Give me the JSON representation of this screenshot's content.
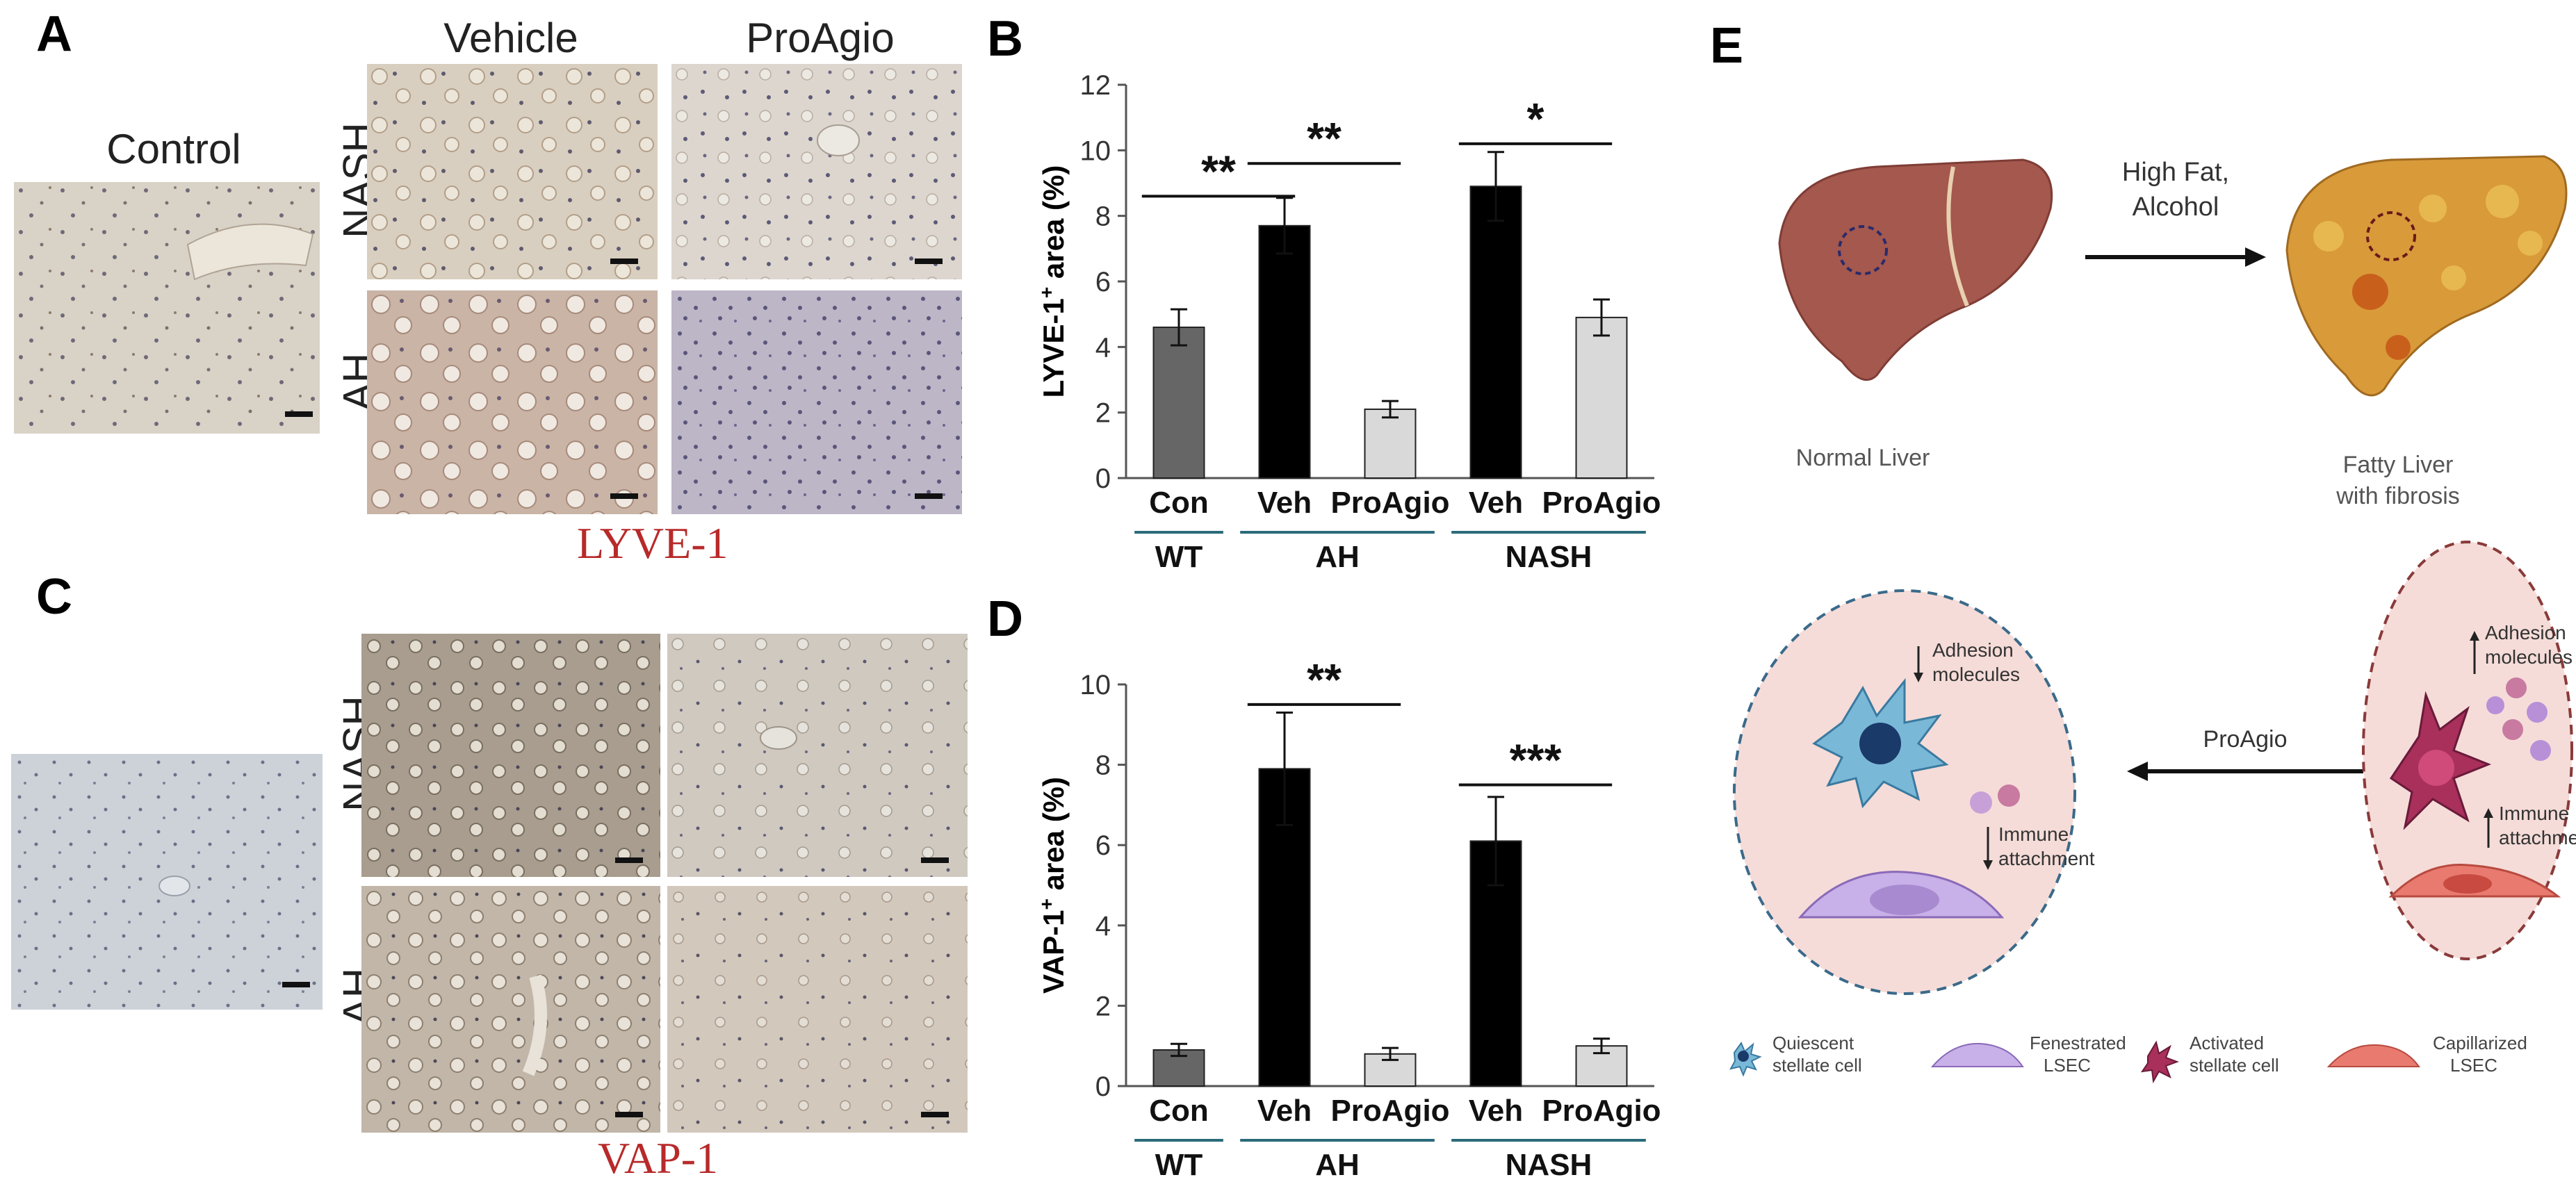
{
  "panels": {
    "A": {
      "letter": "A",
      "control_title": "Control",
      "col_vehicle": "Vehicle",
      "col_proagio": "ProAgio",
      "row_nash": "NASH",
      "row_ah": "AH",
      "stain": "LYVE-1"
    },
    "C": {
      "letter": "C",
      "row_nash": "NASH",
      "row_ah": "AH",
      "stain": "VAP-1"
    },
    "E": {
      "letter": "E",
      "arrow1_label_line1": "High Fat,",
      "arrow1_label_line2": "Alcohol",
      "normal_liver": "Normal Liver",
      "fatty_liver_line1": "Fatty Liver",
      "fatty_liver_line2": "with fibrosis",
      "proagio_arrow": "ProAgio",
      "left_adhesion_line1": "Adhesion",
      "left_adhesion_line2": "molecules",
      "left_immune_line1": "Immune",
      "left_immune_line2": "attachment",
      "right_adhesion_line1": "Adhesion",
      "right_adhesion_line2": "molecules",
      "right_immune_line1": "Immune",
      "right_immune_line2": "attachment",
      "legend": [
        {
          "line1": "Quiescent",
          "line2": "stellate cell",
          "icon": "quiescent-stellate-cell-icon"
        },
        {
          "line1": "Fenestrated",
          "line2": "LSEC",
          "icon": "fenestrated-lsec-icon"
        },
        {
          "line1": "Activated",
          "line2": "stellate cell",
          "icon": "activated-stellate-cell-icon"
        },
        {
          "line1": "Capillarized",
          "line2": "LSEC",
          "icon": "capillarized-lsec-icon"
        }
      ]
    }
  },
  "colors": {
    "con_bar": "#666666",
    "veh_bar": "#000000",
    "proagio_bar": "#d9d9d9",
    "group_line": "#2a6b7a",
    "stain_label": "#b82a2a"
  },
  "chart_data": [
    {
      "panel_letter": "B",
      "type": "bar",
      "ylabel_main": "LYVE-1",
      "ylabel_sup": "+",
      "ylabel_rest": " area (%)",
      "ylim": [
        0,
        12
      ],
      "yticks": [
        0,
        2,
        4,
        6,
        8,
        10,
        12
      ],
      "categories": [
        "Con",
        "Veh",
        "ProAgio",
        "Veh",
        "ProAgio"
      ],
      "values": [
        4.6,
        7.7,
        2.1,
        8.9,
        4.9
      ],
      "errors": [
        0.55,
        0.85,
        0.25,
        1.05,
        0.55
      ],
      "groups": [
        {
          "label": "WT",
          "from": 0,
          "to": 0
        },
        {
          "label": "AH",
          "from": 1,
          "to": 2
        },
        {
          "label": "NASH",
          "from": 3,
          "to": 4
        }
      ],
      "significance": [
        {
          "from": 0,
          "to": 1,
          "label": "**",
          "y": 8.6
        },
        {
          "from": 1,
          "to": 2,
          "label": "**",
          "y": 9.6
        },
        {
          "from": 3,
          "to": 4,
          "label": "*",
          "y": 10.2
        }
      ]
    },
    {
      "panel_letter": "D",
      "type": "bar",
      "ylabel_main": "VAP-1",
      "ylabel_sup": "+",
      "ylabel_rest": " area (%)",
      "ylim": [
        0,
        10
      ],
      "yticks": [
        0,
        2,
        4,
        6,
        8,
        10
      ],
      "categories": [
        "Con",
        "Veh",
        "ProAgio",
        "Veh",
        "ProAgio"
      ],
      "values": [
        0.9,
        7.9,
        0.8,
        6.1,
        1.0
      ],
      "errors": [
        0.15,
        1.4,
        0.15,
        1.1,
        0.18
      ],
      "groups": [
        {
          "label": "WT",
          "from": 0,
          "to": 0
        },
        {
          "label": "AH",
          "from": 1,
          "to": 2
        },
        {
          "label": "NASH",
          "from": 3,
          "to": 4
        }
      ],
      "significance": [
        {
          "from": 1,
          "to": 2,
          "label": "**",
          "y": 9.5
        },
        {
          "from": 3,
          "to": 4,
          "label": "***",
          "y": 7.5
        }
      ]
    }
  ]
}
